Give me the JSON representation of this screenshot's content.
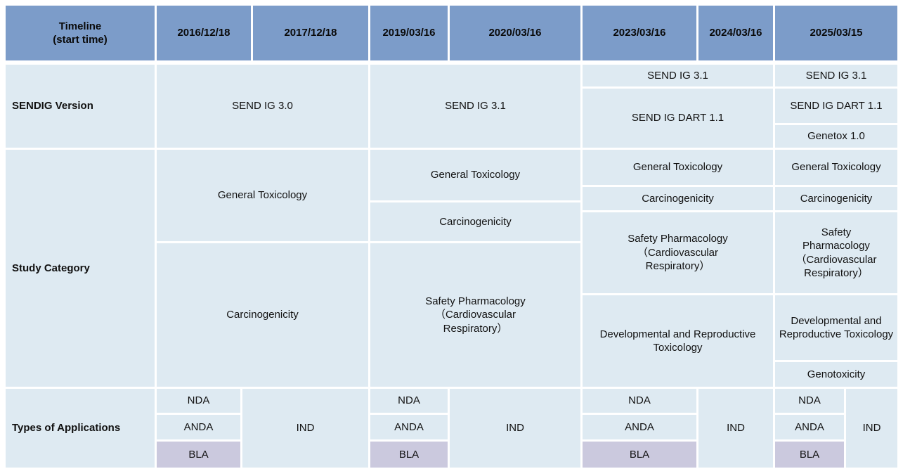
{
  "header": {
    "timeline_label": "Timeline\n(start time)",
    "dates": [
      "2016/12/18",
      "2017/12/18",
      "2019/03/16",
      "2020/03/16",
      "2023/03/16",
      "2024/03/16",
      "2025/03/15"
    ]
  },
  "sendig": {
    "label": "SENDIG Version",
    "send_ig_30": "SEND IG 3.0",
    "send_ig_31": "SEND IG 3.1",
    "send_ig_dart_11": "SEND IG DART 1.1",
    "genetox_10": "Genetox 1.0"
  },
  "study": {
    "label": "Study Category",
    "general_toxicology": "General Toxicology",
    "carcinogenicity": "Carcinogenicity",
    "safety_pharmacology": "Safety Pharmacology\n（Cardiovascular\nRespiratory）",
    "safety_pharmacology_narrow": "Safety\nPharmacology\n（Cardiovascular\nRespiratory）",
    "dart_toxicology": "Developmental and Reproductive Toxicology",
    "genotoxicity": "Genotoxicity"
  },
  "applications": {
    "label": "Types of Applications",
    "nda": "NDA",
    "anda": "ANDA",
    "bla": "BLA",
    "ind": "IND"
  },
  "colors": {
    "header_bg": "#7C9CC9",
    "cell_bg": "#DEEAF2",
    "bla_bg": "#CBC9DE",
    "grid_lines": "#FFFFFF",
    "text": "#111111"
  }
}
